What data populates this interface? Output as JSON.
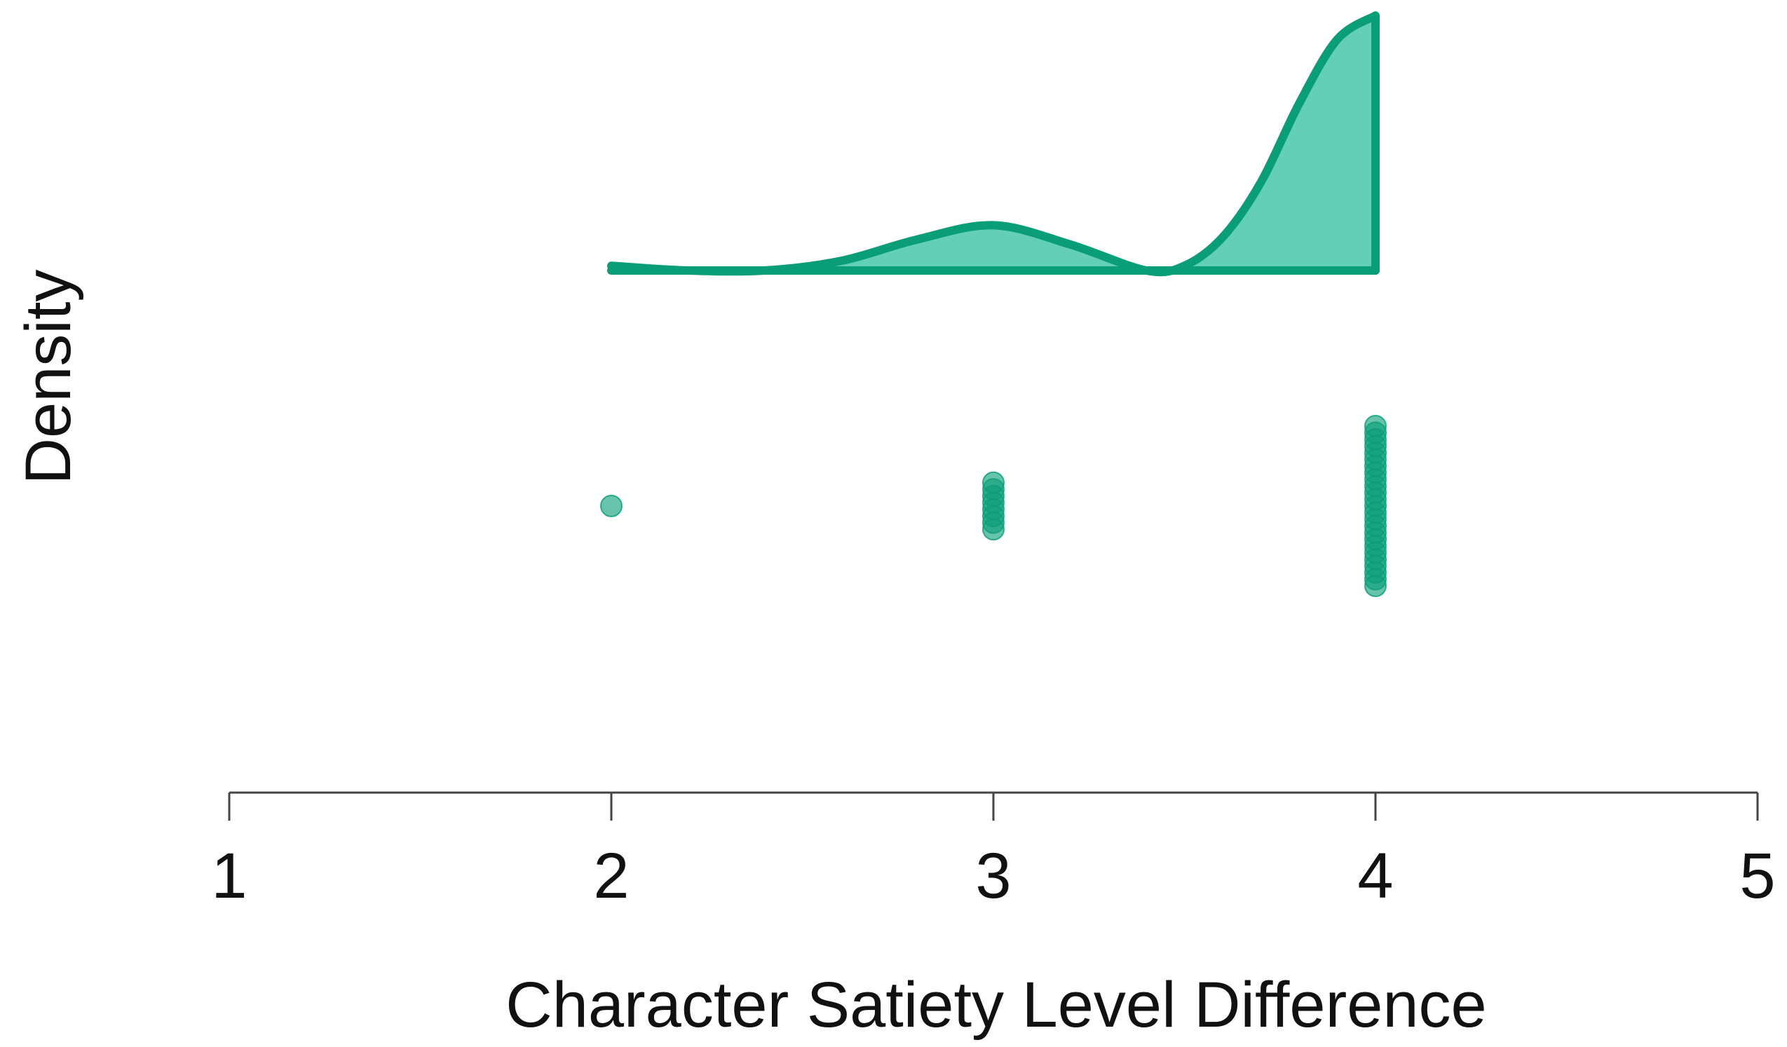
{
  "colors": {
    "accent": "#0a9e78",
    "fill": "#63cfb6",
    "axis": "#444444",
    "text": "#111111"
  },
  "chart_data": {
    "type": "density-dotplot",
    "xlabel": "Character Satiety Level Difference",
    "ylabel": "Density",
    "xlim": [
      1,
      5
    ],
    "xticks": [
      1,
      2,
      3,
      4,
      5
    ],
    "density": {
      "x": [
        2.0,
        2.2,
        2.4,
        2.6,
        2.8,
        3.0,
        3.2,
        3.4,
        3.5,
        3.6,
        3.7,
        3.8,
        3.9,
        4.0
      ],
      "y": [
        0.02,
        0.0,
        0.0,
        0.04,
        0.13,
        0.19,
        0.11,
        0.0,
        0.02,
        0.14,
        0.37,
        0.7,
        0.97,
        1.07
      ]
    },
    "points": [
      {
        "x": 2,
        "n": 1
      },
      {
        "x": 3,
        "n": 8
      },
      {
        "x": 4,
        "n": 25
      }
    ]
  }
}
